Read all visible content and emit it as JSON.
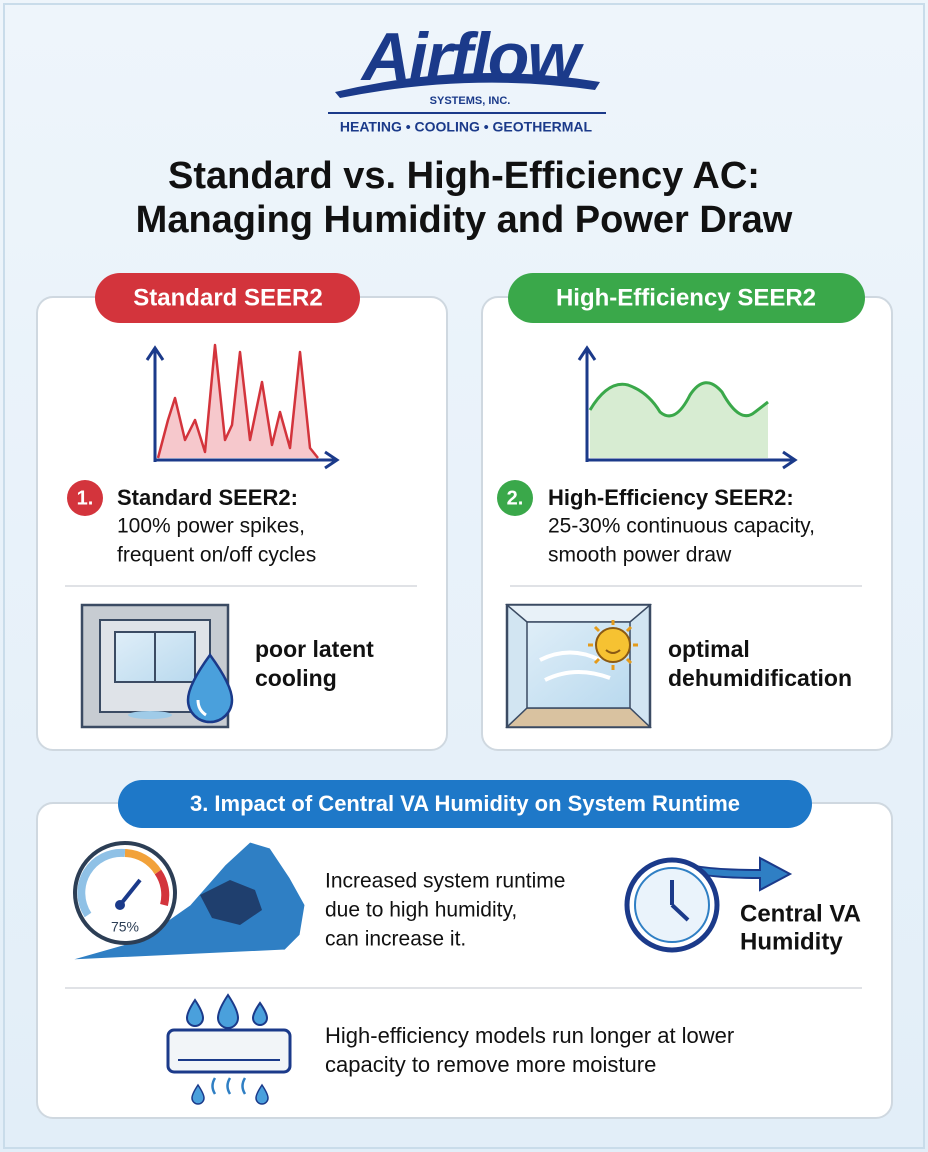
{
  "header": {
    "logo": "Airflow",
    "logo_sub": "SYSTEMS, INC.",
    "tagline": "HEATING • COOLING • GEOTHERMAL",
    "title_lines": [
      "Standard vs. High-Efficiency AC:",
      "Managing Humidity and Power Draw"
    ]
  },
  "panels": [
    {
      "badge": "Standard SEER2",
      "number": "1.",
      "heading": "Standard SEER2:",
      "lines": [
        "100% power spikes,",
        "frequent on/off cycles"
      ],
      "caption_lines": [
        "poor latent",
        "cooling"
      ]
    },
    {
      "badge": "High-Efficiency SEER2",
      "number": "2.",
      "heading": "High-Efficiency SEER2:",
      "lines": [
        "25-30% continuous capacity,",
        "smooth power draw"
      ],
      "caption_lines": [
        "optimal",
        "dehumidification"
      ]
    }
  ],
  "impact": {
    "badge": "3. Impact of Central VA Humidity on System Runtime",
    "gauge_label": "75%",
    "runtime_lines": [
      "Increased system runtime",
      "due to high humidity,",
      "can increase it."
    ],
    "clock_lines": [
      "Central VA",
      "Humidity"
    ],
    "efficiency_lines": [
      "High-efficiency models run longer at lower",
      "capacity to remove more moisture"
    ]
  }
}
